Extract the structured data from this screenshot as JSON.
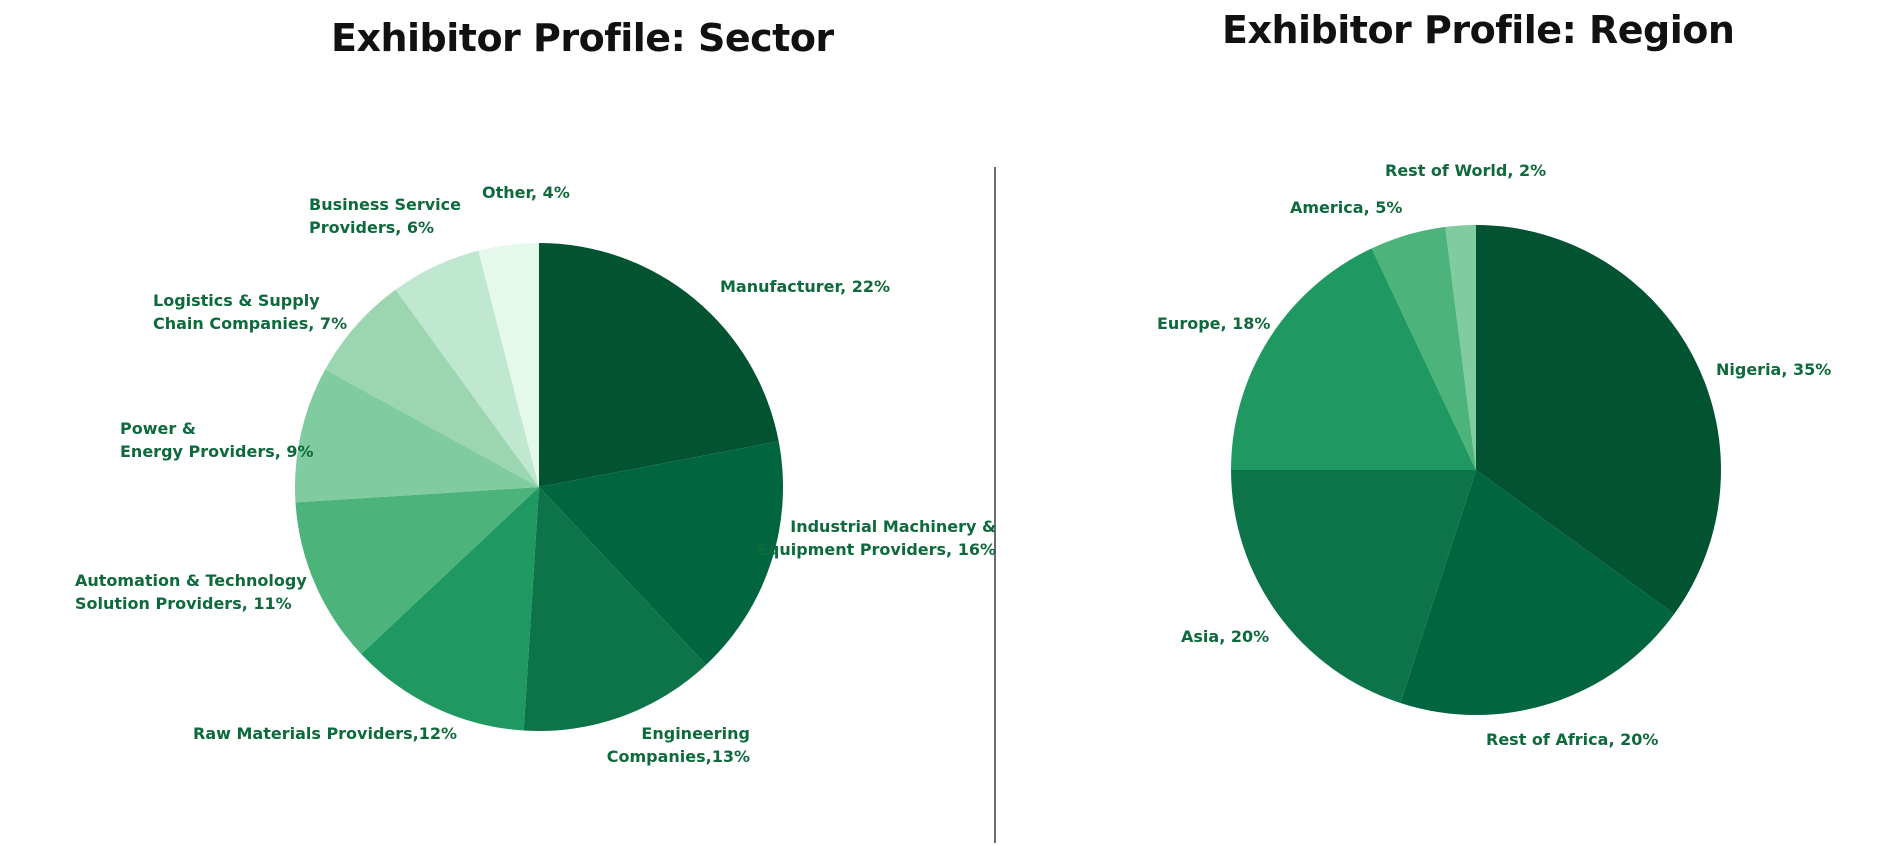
{
  "chart_data": [
    {
      "type": "pie",
      "title": "Exhibitor Profile: Sector",
      "label_color": "#0e6a3c",
      "slices": [
        {
          "label_lines": [
            "Manufacturer, 22%"
          ],
          "value": 22,
          "color": "#015332"
        },
        {
          "label_lines": [
            "Industrial Machinery &",
            "Equipment Providers, 16%"
          ],
          "value": 16,
          "color": "#016640"
        },
        {
          "label_lines": [
            "Engineering",
            "Companies,13%"
          ],
          "value": 13,
          "color": "#0d744a"
        },
        {
          "label_lines": [
            "Raw Materials Providers,12%"
          ],
          "value": 12,
          "color": "#1f9862"
        },
        {
          "label_lines": [
            "Automation & Technology",
            "Solution Providers, 11%"
          ],
          "value": 11,
          "color": "#4cb37b"
        },
        {
          "label_lines": [
            "Power &",
            "Energy Providers, 9%"
          ],
          "value": 9,
          "color": "#80cb9f"
        },
        {
          "label_lines": [
            "Logistics & Supply",
            "Chain Companies, 7%"
          ],
          "value": 7,
          "color": "#9bd6b1"
        },
        {
          "label_lines": [
            "Business Service",
            "Providers, 6%"
          ],
          "value": 6,
          "color": "#c0e7cf"
        },
        {
          "label_lines": [
            "Other, 4%"
          ],
          "value": 4,
          "color": "#e5f8ec"
        }
      ]
    },
    {
      "type": "pie",
      "title": "Exhibitor Profile: Region",
      "label_color": "#0e6a3c",
      "slices": [
        {
          "label_lines": [
            "Nigeria, 35%"
          ],
          "value": 35,
          "color": "#015332"
        },
        {
          "label_lines": [
            "Rest of Africa, 20%"
          ],
          "value": 20,
          "color": "#016640"
        },
        {
          "label_lines": [
            "Asia, 20%"
          ],
          "value": 20,
          "color": "#0d744a"
        },
        {
          "label_lines": [
            "Europe, 18%"
          ],
          "value": 18,
          "color": "#1f9862"
        },
        {
          "label_lines": [
            "America, 5%"
          ],
          "value": 5,
          "color": "#4cb37b"
        },
        {
          "label_lines": [
            "Rest of World, 2%"
          ],
          "value": 2,
          "color": "#80cb9f"
        }
      ]
    }
  ]
}
